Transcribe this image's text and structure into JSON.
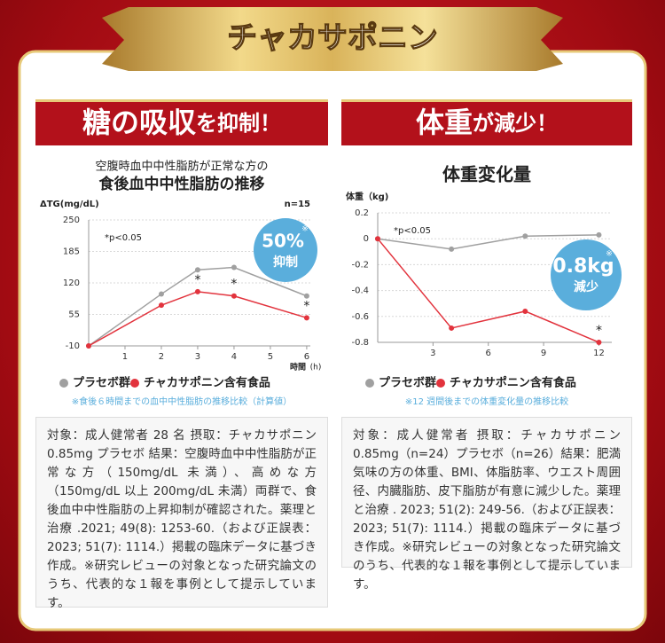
{
  "banner": "チャカサポニン",
  "chart_data": [
    {
      "type": "line",
      "headline": {
        "emphasis": "糖の吸収",
        "rest": "を抑制！"
      },
      "subtitle": "空腹時血中中性脂肪が正常な方の",
      "title": "食後血中中性脂肪の推移",
      "y_label": "ΔTG(mg/dL)",
      "x_label": "時間",
      "x_unit": "(h)",
      "sample": "n=15",
      "significance_note": "*p<0.05",
      "badge": {
        "value": "50%",
        "note": "※",
        "label": "抑制"
      },
      "xlim": [
        0,
        6.1
      ],
      "xticks": [
        1,
        2,
        3,
        4,
        5,
        6
      ],
      "ylim": [
        -10,
        250
      ],
      "yticks": [
        -10,
        55,
        120,
        185,
        250
      ],
      "grid": true,
      "x": [
        0,
        2,
        3,
        4,
        6
      ],
      "series": [
        {
          "name": "プラセボ群",
          "color": "#a0a0a0",
          "values": [
            -10,
            97,
            147,
            152,
            93
          ],
          "markers": [
            null,
            null,
            null,
            null,
            null
          ]
        },
        {
          "name": "チャカサポニン含有食品",
          "color": "#e2333d",
          "values": [
            -10,
            74,
            102,
            93,
            48
          ],
          "markers": [
            null,
            null,
            "*",
            "*",
            "*"
          ]
        }
      ],
      "caption": "※食後６時間までの血中中性脂肪の推移比較（計算値）",
      "description": "対象：成人健常者 28 名 摂取：チャカサポニン 0.85mg プラセボ 結果：空腹時血中中性脂肪が正常な方（150mg/dL 未満）、高めな方（150mg/dL 以上 200mg/dL 未満）両群で、食後血中中性脂肪の上昇抑制が確認された。薬理と治療 .2021; 49(8): 1253-60.（および正誤表：2023; 51(7): 1114.）掲載の臨床データに基づき作成。※研究レビューの対象となった研究論文のうち、代表的な１報を事例として提示しています。"
    },
    {
      "type": "line",
      "headline": {
        "emphasis": "体重",
        "rest": "が減少！"
      },
      "title": "体重変化量",
      "y_label": "体重（kg)",
      "significance_note": "*p<0.05",
      "badge": {
        "value": "0.8kg",
        "note": "※",
        "label": "減少"
      },
      "xlim": [
        0,
        12.7
      ],
      "xticks": [
        3,
        6,
        9,
        12
      ],
      "ylim": [
        -0.8,
        0.2
      ],
      "yticks": [
        0.2,
        0,
        -0.2,
        -0.4,
        -0.6,
        -0.8
      ],
      "grid": true,
      "x": [
        0,
        4,
        8,
        12
      ],
      "series": [
        {
          "name": "プラセボ群",
          "color": "#a0a0a0",
          "values": [
            0,
            -0.08,
            0.02,
            0.03
          ],
          "markers": [
            null,
            null,
            null,
            null
          ]
        },
        {
          "name": "チャカサポニン含有食品",
          "color": "#e2333d",
          "values": [
            0,
            -0.69,
            -0.56,
            -0.8
          ],
          "markers": [
            null,
            null,
            null,
            "*"
          ]
        }
      ],
      "caption": "※12 週間後までの体重変化量の推移比較",
      "description": "対象：成人健常者 摂取：チャカサポニン 0.85mg（n=24）プラセボ（n=26）結果：肥満気味の方の体重、BMI、体脂肪率、ウエスト周囲径、内臓脂肪、皮下脂肪が有意に減少した。薬理と治療 . 2023; 51(2): 249-56.（および正誤表：2023; 51(7): 1114.）掲載の臨床データに基づき作成。※研究レビューの対象となった研究論文のうち、代表的な１報を事例として提示しています。"
    }
  ]
}
